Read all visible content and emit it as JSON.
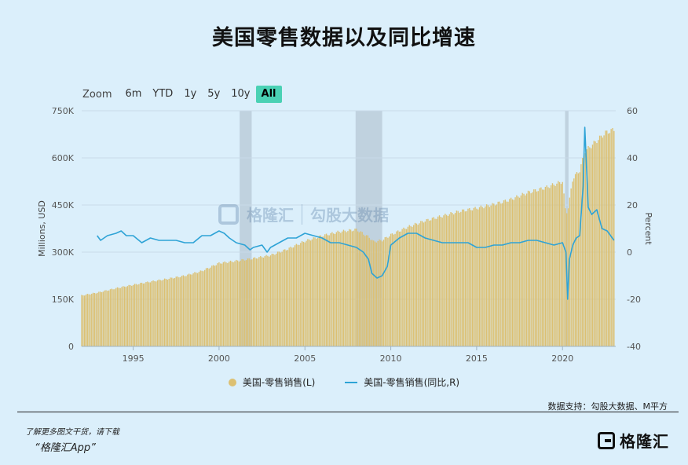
{
  "title": "美国零售数据以及同比增速",
  "zoom": {
    "label": "Zoom",
    "buttons": [
      "6m",
      "YTD",
      "1y",
      "5y",
      "10y",
      "All"
    ],
    "active": "All"
  },
  "legend": {
    "bar_label": "美国-零售销售(L)",
    "line_label": "美国-零售销售(同比,R)"
  },
  "source": "数据支持：勾股大数据、M平方",
  "footer": {
    "line1": "了解更多图文干货，请下载",
    "line2": "“格隆汇App”",
    "logo_text": "格隆汇"
  },
  "watermark": {
    "brand": "格隆汇",
    "brand2": "勾股大数据"
  },
  "colors": {
    "bar": "#dcc072",
    "line": "#2ea3d6",
    "recession": "#aab9c9",
    "grid": "#c9dbe8",
    "background": "#dbeffb"
  },
  "chart_data": {
    "type": "bar+line",
    "xlim": [
      1992,
      2023.1
    ],
    "x_ticks": [
      1995,
      2000,
      2005,
      2010,
      2015,
      2020
    ],
    "y_left": {
      "label": "Millions, USD",
      "range": [
        0,
        750000
      ],
      "ticks": [
        0,
        150000,
        300000,
        450000,
        600000,
        750000
      ],
      "tick_labels": [
        "0",
        "150K",
        "300K",
        "450K",
        "600K",
        "750K"
      ]
    },
    "y_right": {
      "label": "Percent",
      "range": [
        -40,
        60
      ],
      "ticks": [
        -40,
        -20,
        0,
        20,
        40,
        60
      ]
    },
    "recession_bands": [
      [
        2001.2,
        2001.9
      ],
      [
        2007.95,
        2009.5
      ],
      [
        2020.15,
        2020.35
      ]
    ],
    "series": [
      {
        "name": "美国-零售销售(L)",
        "axis": "left",
        "kind": "bar",
        "x": [
          1992,
          1993,
          1994,
          1995,
          1996,
          1997,
          1998,
          1999,
          2000,
          2001,
          2002,
          2003,
          2004,
          2005,
          2006,
          2007,
          2008,
          2008.8,
          2009,
          2009.5,
          2010,
          2011,
          2012,
          2013,
          2014,
          2015,
          2016,
          2017,
          2018,
          2019,
          2020,
          2020.2,
          2020.35,
          2020.6,
          2021,
          2021.3,
          2021.5,
          2022,
          2022.5,
          2023
        ],
        "values": [
          162000,
          172000,
          185000,
          196000,
          206000,
          215000,
          225000,
          240000,
          265000,
          272000,
          280000,
          290000,
          310000,
          335000,
          352000,
          365000,
          372000,
          345000,
          333000,
          338000,
          355000,
          380000,
          400000,
          415000,
          430000,
          440000,
          452000,
          468000,
          490000,
          505000,
          525000,
          420000,
          445000,
          535000,
          560000,
          620000,
          630000,
          655000,
          680000,
          690000
        ]
      },
      {
        "name": "美国-零售销售(同比,R)",
        "axis": "right",
        "kind": "line",
        "x": [
          1992.9,
          1993.1,
          1993.5,
          1994,
          1994.3,
          1994.6,
          1995,
          1995.5,
          1996,
          1996.5,
          1997,
          1997.5,
          1998,
          1998.5,
          1999,
          1999.5,
          2000,
          2000.3,
          2000.6,
          2001,
          2001.5,
          2001.8,
          2002,
          2002.5,
          2002.8,
          2003,
          2003.5,
          2004,
          2004.5,
          2005,
          2005.5,
          2006,
          2006.5,
          2007,
          2007.5,
          2008,
          2008.4,
          2008.7,
          2008.9,
          2009.2,
          2009.5,
          2009.8,
          2010,
          2010.5,
          2011,
          2011.5,
          2012,
          2012.5,
          2013,
          2013.5,
          2014,
          2014.5,
          2015,
          2015.5,
          2016,
          2016.5,
          2017,
          2017.5,
          2018,
          2018.5,
          2019,
          2019.5,
          2020,
          2020.2,
          2020.3,
          2020.4,
          2020.6,
          2020.8,
          2021,
          2021.2,
          2021.3,
          2021.5,
          2021.7,
          2022,
          2022.3,
          2022.6,
          2022.9,
          2023
        ],
        "values": [
          7,
          5,
          7,
          8,
          9,
          7,
          7,
          4,
          6,
          5,
          5,
          5,
          4,
          4,
          7,
          7,
          9,
          8,
          6,
          4,
          3,
          1,
          2,
          3,
          0,
          2,
          4,
          6,
          6,
          8,
          7,
          6,
          4,
          4,
          3,
          2,
          0,
          -3,
          -9,
          -11,
          -10,
          -6,
          3,
          6,
          8,
          8,
          6,
          5,
          4,
          4,
          4,
          4,
          2,
          2,
          3,
          3,
          4,
          4,
          5,
          5,
          4,
          3,
          4,
          0,
          -20,
          -3,
          3,
          6,
          7,
          28,
          53,
          19,
          16,
          18,
          10,
          9,
          6,
          5
        ]
      }
    ]
  }
}
